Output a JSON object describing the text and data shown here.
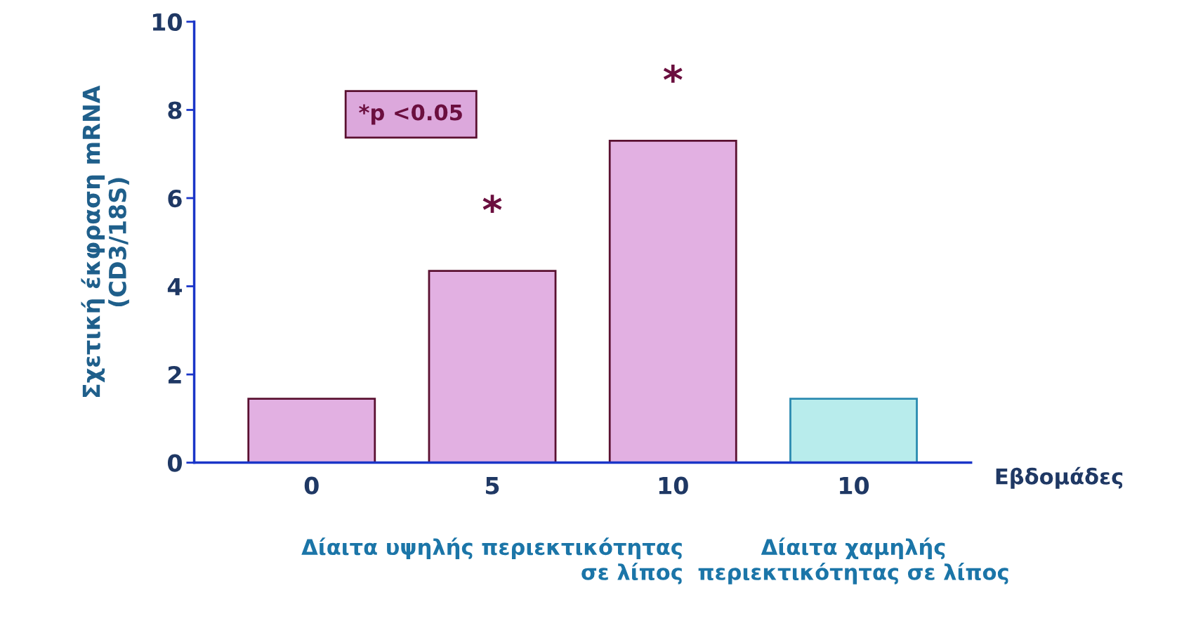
{
  "chart_data": {
    "type": "bar",
    "ylabel": "Σχετική έκφραση mRNA\n(CD3/18S)",
    "xlabel": "Εβδομάδες",
    "categories": [
      "0",
      "5",
      "10",
      "10"
    ],
    "values": [
      1.45,
      4.35,
      7.3,
      1.45
    ],
    "colors": [
      "#e2b0e2",
      "#e2b0e2",
      "#e2b0e2",
      "#b8ecec"
    ],
    "value_labels": [
      null,
      "*",
      "*",
      null
    ],
    "ylim": [
      0,
      10
    ],
    "yticks": [
      0,
      2,
      4,
      6,
      8,
      10
    ],
    "grid": false,
    "legend": false,
    "annotations": [
      "*p <0.05",
      "Δίαιτα υψηλής περιεκτικότητας\nσε λίπος",
      "Δίαιτα χαμηλής\nπεριεκτικότητας σε λίπος"
    ]
  }
}
